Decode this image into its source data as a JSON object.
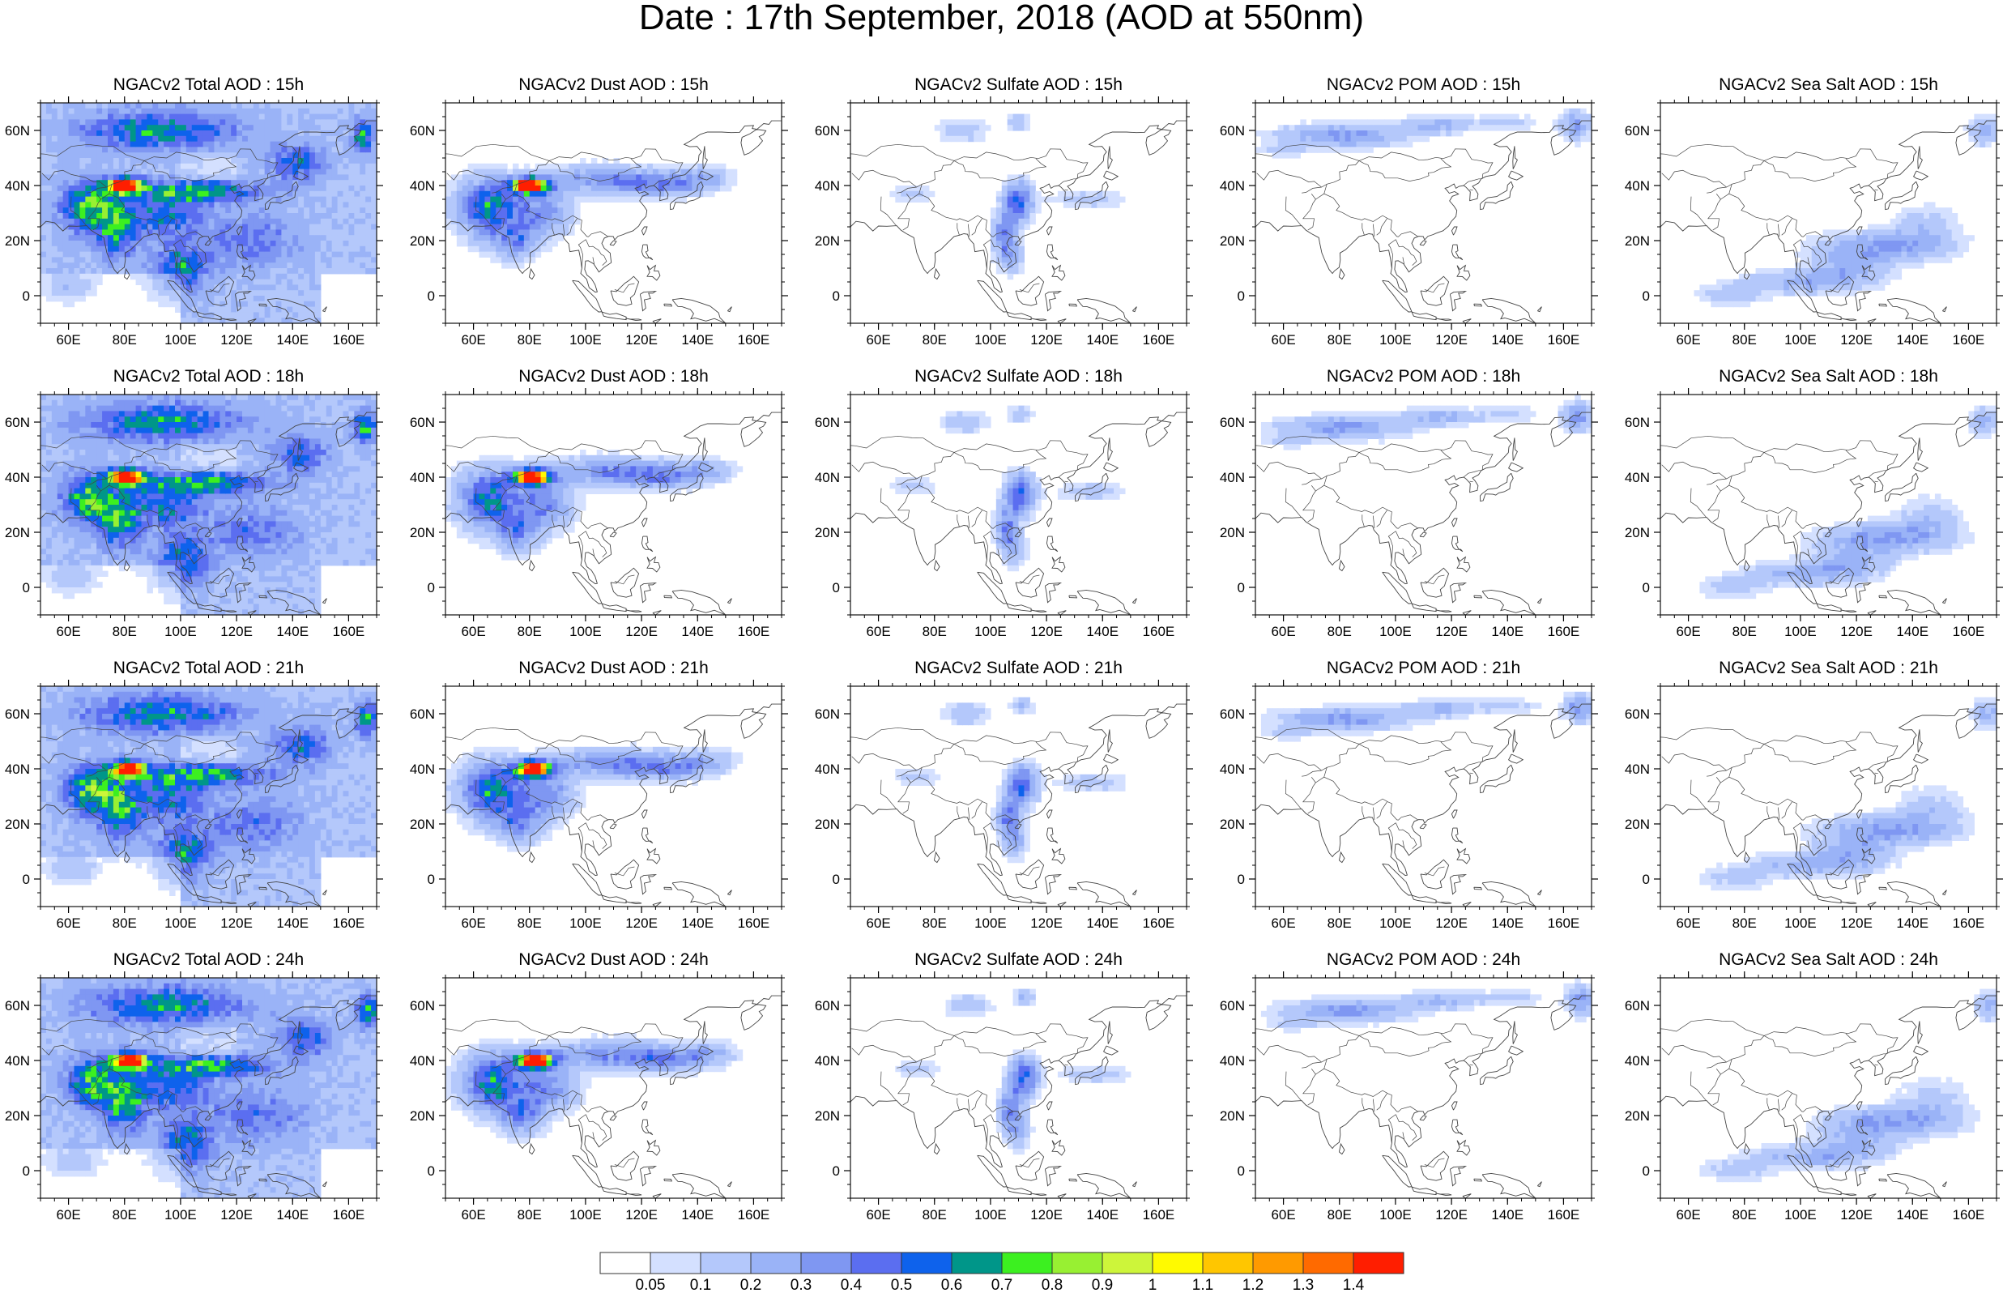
{
  "title": "Date : 17th September, 2018 (AOD at 550nm)",
  "colors": {
    "background": "#ffffff",
    "coast": "#444444",
    "frame": "#222222"
  },
  "axes": {
    "lon_ticks": [
      60,
      80,
      100,
      120,
      140,
      160
    ],
    "lon_labels": [
      "60E",
      "80E",
      "100E",
      "120E",
      "140E",
      "160E"
    ],
    "lat_ticks": [
      60,
      40,
      20,
      0
    ],
    "lat_labels": [
      "60N",
      "40N",
      "20N",
      "0"
    ],
    "lon_range": [
      50,
      170
    ],
    "lat_range": [
      -10,
      70
    ]
  },
  "panels": [
    {
      "species": "total",
      "title": "NGACv2 Total AOD : 15h"
    },
    {
      "species": "dust",
      "title": "NGACv2 Dust AOD : 15h"
    },
    {
      "species": "sulfate",
      "title": "NGACv2 Sulfate AOD : 15h"
    },
    {
      "species": "pom",
      "title": "NGACv2 POM AOD : 15h"
    },
    {
      "species": "seasalt",
      "title": "NGACv2 Sea Salt AOD : 15h"
    },
    {
      "species": "total",
      "title": "NGACv2 Total AOD : 18h"
    },
    {
      "species": "dust",
      "title": "NGACv2 Dust AOD : 18h"
    },
    {
      "species": "sulfate",
      "title": "NGACv2 Sulfate AOD : 18h"
    },
    {
      "species": "pom",
      "title": "NGACv2 POM AOD : 18h"
    },
    {
      "species": "seasalt",
      "title": "NGACv2 Sea Salt AOD : 18h"
    },
    {
      "species": "total",
      "title": "NGACv2 Total AOD : 21h"
    },
    {
      "species": "dust",
      "title": "NGACv2 Dust AOD : 21h"
    },
    {
      "species": "sulfate",
      "title": "NGACv2 Sulfate AOD : 21h"
    },
    {
      "species": "pom",
      "title": "NGACv2 POM AOD : 21h"
    },
    {
      "species": "seasalt",
      "title": "NGACv2 Sea Salt AOD : 21h"
    },
    {
      "species": "total",
      "title": "NGACv2 Total AOD : 24h"
    },
    {
      "species": "dust",
      "title": "NGACv2 Dust AOD : 24h"
    },
    {
      "species": "sulfate",
      "title": "NGACv2 Sulfate AOD : 24h"
    },
    {
      "species": "pom",
      "title": "NGACv2 POM AOD : 24h"
    },
    {
      "species": "seasalt",
      "title": "NGACv2 Sea Salt  AOD : 24h"
    }
  ],
  "colorbar": {
    "labels": [
      "0.05",
      "0.1",
      "0.2",
      "0.3",
      "0.4",
      "0.5",
      "0.6",
      "0.7",
      "0.8",
      "0.9",
      "1",
      "1.1",
      "1.2",
      "1.3",
      "1.4"
    ],
    "colors": [
      "#ffffff",
      "#d4e0ff",
      "#b4c8fb",
      "#9ab3f7",
      "#7f97f2",
      "#5b6ef0",
      "#0e62ec",
      "#009689",
      "#3cf020",
      "#98f032",
      "#cdf53a",
      "#fffa00",
      "#ffc600",
      "#ff9a00",
      "#ff6a00",
      "#ff1e00"
    ]
  }
}
